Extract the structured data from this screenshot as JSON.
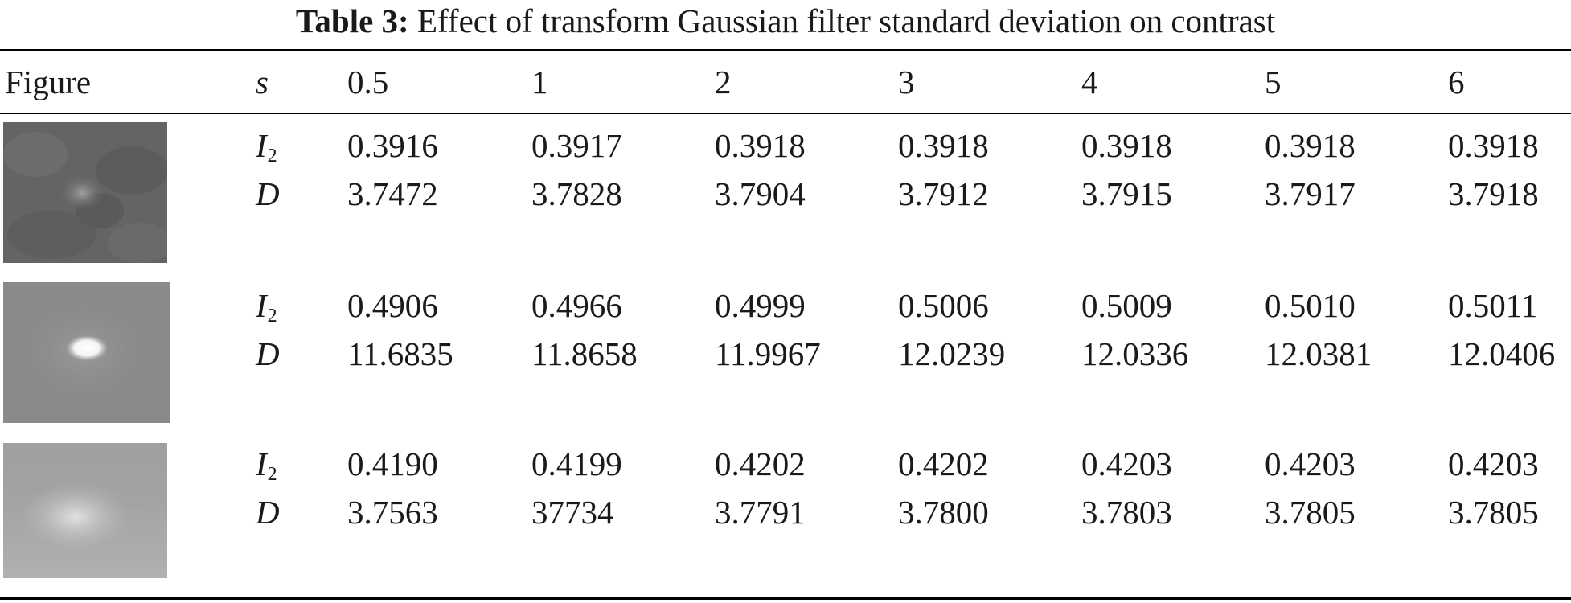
{
  "caption": {
    "label": "Table 3:",
    "text": "Effect of transform Gaussian filter standard deviation on contrast"
  },
  "header": {
    "figure": "Figure",
    "s": "s",
    "values": [
      "0.5",
      "1",
      "2",
      "3",
      "4",
      "5",
      "6"
    ]
  },
  "rows": [
    {
      "i2_symbol": "I",
      "i2_sub": "2",
      "d_symbol": "D",
      "i2": [
        "0.3916",
        "0.3917",
        "0.3918",
        "0.3918",
        "0.3918",
        "0.3918",
        "0.3918"
      ],
      "d": [
        "3.7472",
        "3.7828",
        "3.7904",
        "3.7912",
        "3.7915",
        "3.7917",
        "3.7918"
      ]
    },
    {
      "i2_symbol": "I",
      "i2_sub": "2",
      "d_symbol": "D",
      "i2": [
        "0.4906",
        "0.4966",
        "0.4999",
        "0.5006",
        "0.5009",
        "0.5010",
        "0.5011"
      ],
      "d": [
        "11.6835",
        "11.8658",
        "11.9967",
        "12.0239",
        "12.0336",
        "12.0381",
        "12.0406"
      ]
    },
    {
      "i2_symbol": "I",
      "i2_sub": "2",
      "d_symbol": "D",
      "i2": [
        "0.4190",
        "0.4199",
        "0.4202",
        "0.4202",
        "0.4203",
        "0.4203",
        "0.4203"
      ],
      "d": [
        "3.7563",
        "37734",
        "3.7791",
        "3.7800",
        "3.7803",
        "3.7805",
        "3.7805"
      ]
    }
  ]
}
